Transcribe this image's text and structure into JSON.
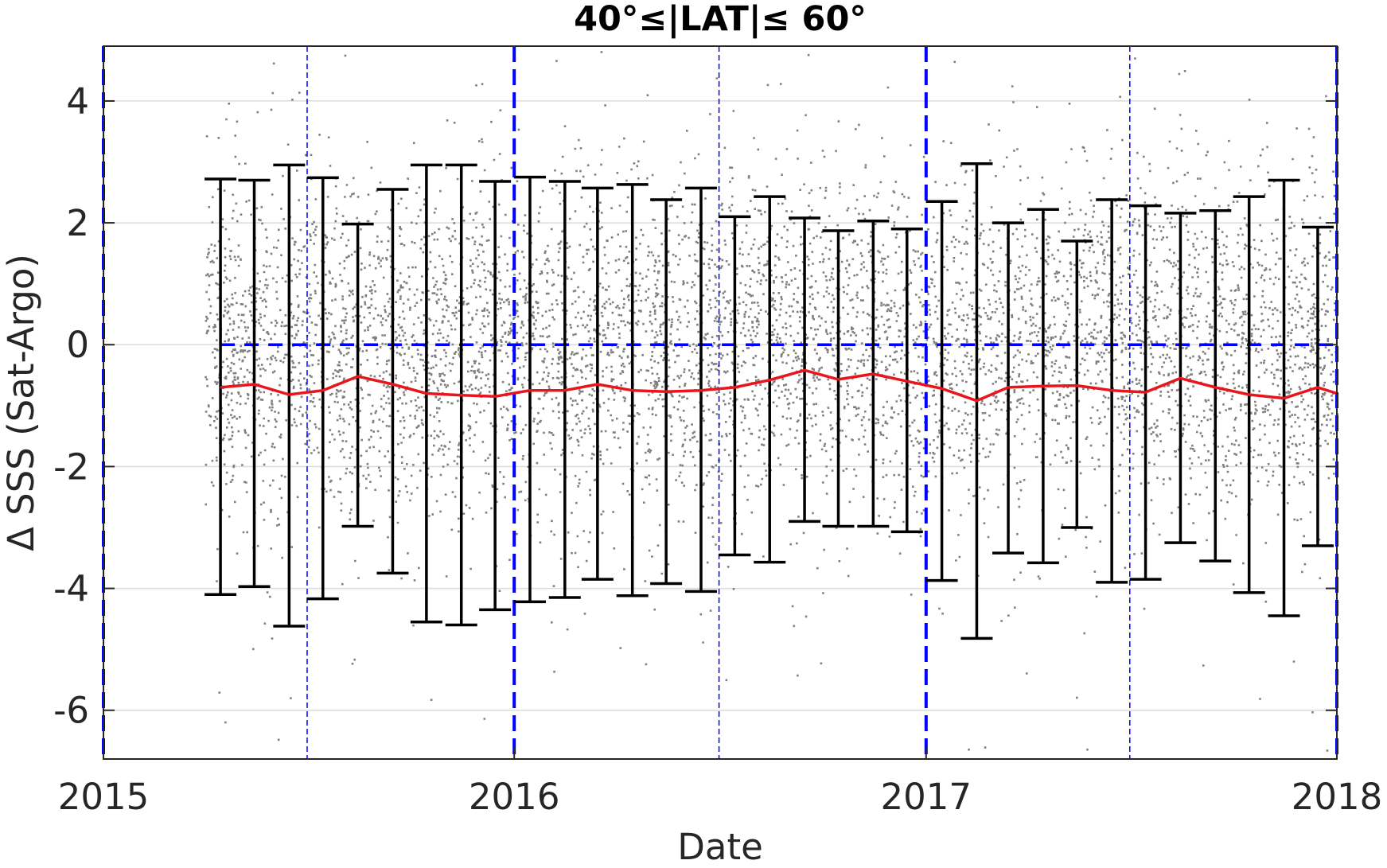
{
  "chart_data": {
    "type": "scatter",
    "title": "40°≤|LAT|≤ 60°",
    "xlabel": "Date",
    "ylabel": "Δ SSS (Sat-Argo)",
    "xlim": [
      "2015-01-01",
      "2018-01-01"
    ],
    "ylim": [
      -6.8,
      4.9
    ],
    "xticks": [
      {
        "date": "2015-01-01",
        "label": "2015"
      },
      {
        "date": "2016-01-01",
        "label": "2016"
      },
      {
        "date": "2017-01-01",
        "label": "2017"
      },
      {
        "date": "2018-01-01",
        "label": "2018"
      }
    ],
    "yticks": [
      {
        "value": 4,
        "label": "4"
      },
      {
        "value": 2,
        "label": "2"
      },
      {
        "value": 0,
        "label": "0"
      },
      {
        "value": -2,
        "label": "-2"
      },
      {
        "value": -4,
        "label": "-4"
      },
      {
        "value": -6,
        "label": "-6"
      }
    ],
    "grid": "horizontal",
    "colors": {
      "scatter": "#808080",
      "mean_line": "#e8161c",
      "error_bars": "#000000",
      "reference_lines": "#0000ff",
      "grid": "#dcdcdc",
      "axes": "#262626"
    },
    "scatter_points": {
      "start": "2015-04-01",
      "end": "2018-01-01",
      "approx_center": 0,
      "approx_spread_sd": 1.3,
      "rendering": "dense cloud of individual match-up points"
    },
    "reference_lines": {
      "horizontal_zero": {
        "y": 0,
        "start": "2015-04-15",
        "end": "2018-01-01",
        "style": "dashed"
      },
      "year_boundaries": [
        "2015-01-01",
        "2016-01-01",
        "2017-01-01",
        "2018-01-01"
      ],
      "mid_year": [
        "2015-07-01",
        "2016-07-01",
        "2017-07-01"
      ]
    },
    "series": [
      {
        "kind": "mean_line",
        "x": [
          "2015-04-15",
          "2015-05-15",
          "2015-06-15",
          "2015-07-15",
          "2015-08-15",
          "2015-09-15",
          "2015-10-15",
          "2015-11-15",
          "2015-12-15",
          "2016-01-15",
          "2016-02-15",
          "2016-03-15",
          "2016-04-15",
          "2016-05-15",
          "2016-06-15",
          "2016-07-15",
          "2016-08-15",
          "2016-09-15",
          "2016-10-15",
          "2016-11-15",
          "2016-12-15",
          "2017-01-15",
          "2017-02-15",
          "2017-03-15",
          "2017-04-15",
          "2017-05-15",
          "2017-06-15",
          "2017-07-15",
          "2017-08-15",
          "2017-09-15",
          "2017-10-15",
          "2017-11-15",
          "2017-12-15",
          "2018-01-01"
        ],
        "y": [
          -0.7,
          -0.65,
          -0.82,
          -0.75,
          -0.52,
          -0.65,
          -0.8,
          -0.83,
          -0.85,
          -0.75,
          -0.75,
          -0.65,
          -0.75,
          -0.77,
          -0.75,
          -0.7,
          -0.58,
          -0.42,
          -0.57,
          -0.48,
          -0.6,
          -0.72,
          -0.92,
          -0.7,
          -0.68,
          -0.67,
          -0.75,
          -0.78,
          -0.55,
          -0.7,
          -0.82,
          -0.88,
          -0.7,
          -0.8
        ]
      },
      {
        "kind": "error_bars",
        "x": [
          "2015-04-15",
          "2015-05-15",
          "2015-06-15",
          "2015-07-15",
          "2015-08-15",
          "2015-09-15",
          "2015-10-15",
          "2015-11-15",
          "2015-12-15",
          "2016-01-15",
          "2016-02-15",
          "2016-03-15",
          "2016-04-15",
          "2016-05-15",
          "2016-06-15",
          "2016-07-15",
          "2016-08-15",
          "2016-09-15",
          "2016-10-15",
          "2016-11-15",
          "2016-12-15",
          "2017-01-15",
          "2017-02-15",
          "2017-03-15",
          "2017-04-15",
          "2017-05-15",
          "2017-06-15",
          "2017-07-15",
          "2017-08-15",
          "2017-09-15",
          "2017-10-15",
          "2017-11-15",
          "2017-12-15"
        ],
        "upper": [
          2.72,
          2.7,
          2.95,
          2.74,
          1.98,
          2.55,
          2.95,
          2.95,
          2.68,
          2.75,
          2.68,
          2.57,
          2.63,
          2.38,
          2.57,
          2.1,
          2.43,
          2.08,
          1.87,
          2.03,
          1.9,
          2.35,
          2.97,
          2.0,
          2.22,
          1.7,
          2.38,
          2.28,
          2.16,
          2.2,
          2.43,
          2.7,
          1.93
        ],
        "lower": [
          -4.1,
          -3.97,
          -4.62,
          -4.17,
          -2.98,
          -3.75,
          -4.55,
          -4.6,
          -4.35,
          -4.22,
          -4.15,
          -3.85,
          -4.12,
          -3.92,
          -4.05,
          -3.45,
          -3.57,
          -2.9,
          -2.98,
          -2.98,
          -3.07,
          -3.87,
          -4.82,
          -3.42,
          -3.58,
          -3.0,
          -3.9,
          -3.85,
          -3.25,
          -3.55,
          -4.07,
          -4.45,
          -3.3
        ]
      }
    ]
  }
}
